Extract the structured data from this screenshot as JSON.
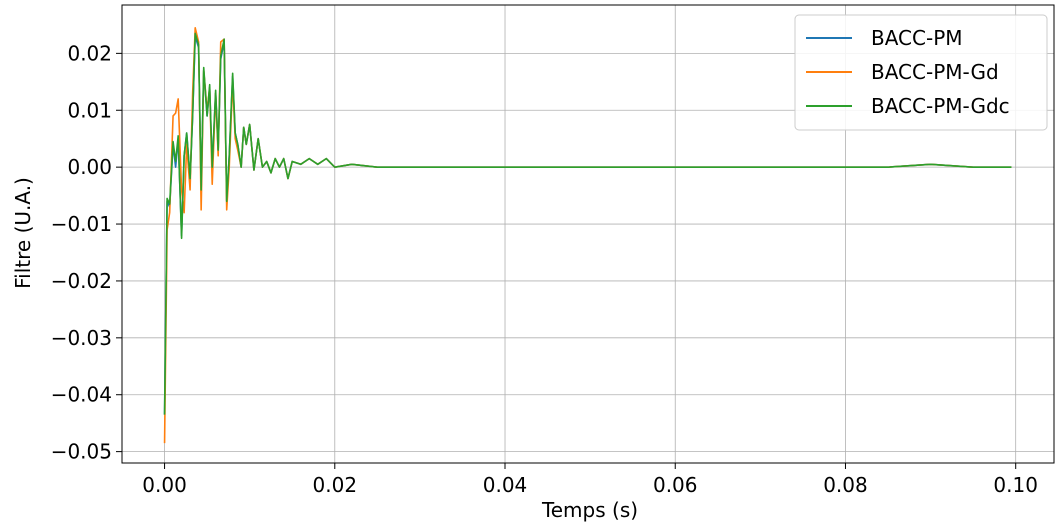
{
  "chart_data": {
    "type": "line",
    "title": "",
    "xlabel": "Temps (s)",
    "ylabel": "Filtre (U.A.)",
    "xlim": [
      -0.005,
      0.1045
    ],
    "ylim": [
      -0.052,
      0.0285
    ],
    "xticks": [
      0.0,
      0.02,
      0.04,
      0.06,
      0.08,
      0.1
    ],
    "xtick_labels": [
      "0.00",
      "0.02",
      "0.04",
      "0.06",
      "0.08",
      "0.10"
    ],
    "yticks": [
      0.02,
      0.01,
      0.0,
      -0.01,
      -0.02,
      -0.03,
      -0.04,
      -0.05
    ],
    "ytick_labels": [
      "0.02",
      "0.01",
      "0.00",
      "−0.01",
      "−0.02",
      "−0.03",
      "−0.04",
      "−0.05"
    ],
    "grid": true,
    "legend_position": "top-right",
    "series": [
      {
        "name": "BACC-PM",
        "color": "#1f77b4",
        "x": [
          0.0,
          0.0003,
          0.0006,
          0.001,
          0.0013,
          0.0016,
          0.002,
          0.0023,
          0.0026,
          0.003,
          0.0033,
          0.0036,
          0.004,
          0.0043,
          0.0046,
          0.005,
          0.0053,
          0.0056,
          0.006,
          0.0063,
          0.0066,
          0.007,
          0.0073,
          0.0076,
          0.008,
          0.0083,
          0.0086,
          0.009,
          0.0093,
          0.0096,
          0.01,
          0.0105,
          0.011,
          0.0115,
          0.012,
          0.0125,
          0.013,
          0.0135,
          0.014,
          0.0145,
          0.015,
          0.016,
          0.017,
          0.018,
          0.019,
          0.02,
          0.022,
          0.025,
          0.03,
          0.04,
          0.05,
          0.06,
          0.07,
          0.08,
          0.085,
          0.09,
          0.095,
          0.0995
        ],
        "y": [
          -0.0435,
          -0.006,
          -0.007,
          0.004,
          0.0,
          0.005,
          -0.012,
          0.002,
          0.006,
          -0.002,
          0.009,
          0.023,
          0.021,
          -0.004,
          0.017,
          0.009,
          0.014,
          0.0,
          0.013,
          0.003,
          0.019,
          0.022,
          -0.006,
          0.002,
          0.016,
          0.006,
          0.004,
          0.0,
          0.007,
          0.004,
          0.0075,
          -0.0005,
          0.005,
          0.0,
          0.001,
          -0.001,
          0.0015,
          0.0,
          0.0015,
          -0.002,
          0.001,
          0.0005,
          0.0015,
          0.0005,
          0.0015,
          0.0,
          0.0005,
          0.0,
          0.0,
          0.0,
          0.0,
          0.0,
          0.0,
          0.0,
          0.0,
          0.0005,
          0.0,
          0.0
        ]
      },
      {
        "name": "BACC-PM-Gd",
        "color": "#ff7f0e",
        "x": [
          0.0,
          0.0003,
          0.0006,
          0.001,
          0.0013,
          0.0016,
          0.002,
          0.0023,
          0.0026,
          0.003,
          0.0033,
          0.0036,
          0.004,
          0.0043,
          0.0046,
          0.005,
          0.0053,
          0.0056,
          0.006,
          0.0063,
          0.0066,
          0.007,
          0.0073,
          0.0076,
          0.008,
          0.0083,
          0.0086,
          0.009,
          0.0093,
          0.0096,
          0.01,
          0.0105,
          0.011,
          0.0115,
          0.012,
          0.0125,
          0.013,
          0.0135,
          0.014,
          0.0145,
          0.015,
          0.016,
          0.017,
          0.018,
          0.019,
          0.02,
          0.022,
          0.025,
          0.03,
          0.04,
          0.05,
          0.06,
          0.07,
          0.08,
          0.085,
          0.09,
          0.095,
          0.0995
        ],
        "y": [
          -0.0485,
          -0.011,
          -0.008,
          0.009,
          0.0095,
          0.012,
          -0.004,
          -0.008,
          0.004,
          -0.004,
          0.013,
          0.0245,
          0.022,
          -0.0075,
          0.017,
          0.01,
          0.014,
          -0.003,
          0.013,
          0.002,
          0.022,
          0.0225,
          -0.0075,
          0.0,
          0.015,
          0.005,
          0.003,
          0.0,
          0.007,
          0.004,
          0.0075,
          -0.0005,
          0.005,
          0.0,
          0.001,
          -0.001,
          0.0015,
          0.0,
          0.0015,
          -0.002,
          0.001,
          0.0005,
          0.0015,
          0.0005,
          0.0015,
          0.0,
          0.0005,
          0.0,
          0.0,
          0.0,
          0.0,
          0.0,
          0.0,
          0.0,
          0.0,
          0.0005,
          0.0,
          0.0
        ]
      },
      {
        "name": "BACC-PM-Gdc",
        "color": "#2ca02c",
        "x": [
          0.0,
          0.0003,
          0.0006,
          0.001,
          0.0013,
          0.0016,
          0.002,
          0.0023,
          0.0026,
          0.003,
          0.0033,
          0.0036,
          0.004,
          0.0043,
          0.0046,
          0.005,
          0.0053,
          0.0056,
          0.006,
          0.0063,
          0.0066,
          0.007,
          0.0073,
          0.0076,
          0.008,
          0.0083,
          0.0086,
          0.009,
          0.0093,
          0.0096,
          0.01,
          0.0105,
          0.011,
          0.0115,
          0.012,
          0.0125,
          0.013,
          0.0135,
          0.014,
          0.0145,
          0.015,
          0.016,
          0.017,
          0.018,
          0.019,
          0.02,
          0.022,
          0.025,
          0.03,
          0.04,
          0.05,
          0.06,
          0.07,
          0.08,
          0.085,
          0.09,
          0.095,
          0.0995
        ],
        "y": [
          -0.0435,
          -0.0055,
          -0.0065,
          0.0045,
          0.001,
          0.0055,
          -0.0125,
          0.002,
          0.006,
          -0.002,
          0.009,
          0.0235,
          0.0215,
          -0.004,
          0.0175,
          0.009,
          0.0145,
          0.0,
          0.0135,
          0.003,
          0.0195,
          0.0225,
          -0.006,
          0.002,
          0.0165,
          0.006,
          0.004,
          0.0,
          0.007,
          0.004,
          0.0075,
          -0.0005,
          0.005,
          0.0,
          0.001,
          -0.001,
          0.0015,
          0.0,
          0.0015,
          -0.002,
          0.001,
          0.0005,
          0.0015,
          0.0005,
          0.0015,
          0.0,
          0.0005,
          0.0,
          0.0,
          0.0,
          0.0,
          0.0,
          0.0,
          0.0,
          0.0,
          0.0005,
          0.0,
          0.0
        ]
      }
    ]
  }
}
